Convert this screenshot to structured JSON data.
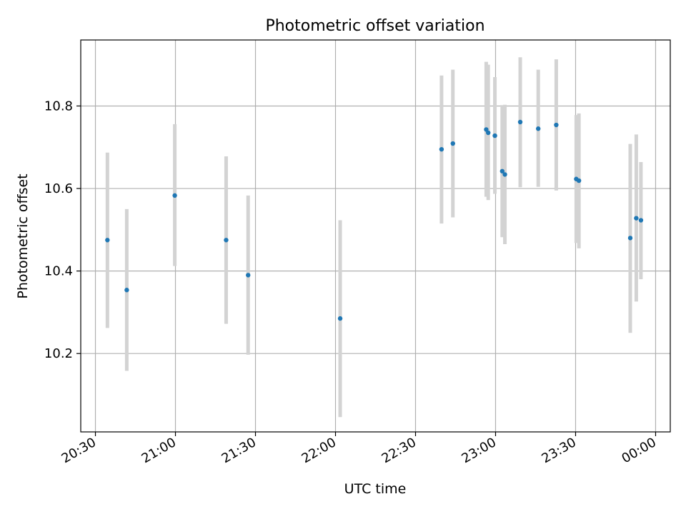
{
  "chart_data": {
    "type": "scatter",
    "title": "Photometric offset variation",
    "xlabel": "UTC time",
    "ylabel": "Photometric offset",
    "x_ticks": [
      "20:30",
      "21:00",
      "21:30",
      "22:00",
      "22:30",
      "23:00",
      "23:30",
      "00:00"
    ],
    "y_ticks": [
      "10.2",
      "10.4",
      "10.6",
      "10.8"
    ],
    "xlim": [
      "20:24:30",
      "00:05:30"
    ],
    "ylim": [
      10.01,
      10.96
    ],
    "grid": true,
    "errorbar_color": "#d3d3d3",
    "point_color": "#1f77b4",
    "series": [
      {
        "points": [
          {
            "x": "20:34:30",
            "y": 10.475,
            "lo": 10.262,
            "hi": 10.687
          },
          {
            "x": "20:41:45",
            "y": 10.354,
            "lo": 10.158,
            "hi": 10.55
          },
          {
            "x": "20:59:45",
            "y": 10.583,
            "lo": 10.412,
            "hi": 10.756
          },
          {
            "x": "21:19:00",
            "y": 10.475,
            "lo": 10.272,
            "hi": 10.678
          },
          {
            "x": "21:27:15",
            "y": 10.39,
            "lo": 10.197,
            "hi": 10.583
          },
          {
            "x": "22:01:45",
            "y": 10.285,
            "lo": 10.046,
            "hi": 10.523
          },
          {
            "x": "22:39:45",
            "y": 10.695,
            "lo": 10.515,
            "hi": 10.874
          },
          {
            "x": "22:44:00",
            "y": 10.709,
            "lo": 10.53,
            "hi": 10.888
          },
          {
            "x": "22:56:30",
            "y": 10.743,
            "lo": 10.58,
            "hi": 10.907
          },
          {
            "x": "22:57:15",
            "y": 10.735,
            "lo": 10.572,
            "hi": 10.9
          },
          {
            "x": "22:59:45",
            "y": 10.728,
            "lo": 10.587,
            "hi": 10.87
          },
          {
            "x": "23:02:30",
            "y": 10.642,
            "lo": 10.482,
            "hi": 10.802
          },
          {
            "x": "23:03:30",
            "y": 10.634,
            "lo": 10.465,
            "hi": 10.803
          },
          {
            "x": "23:09:15",
            "y": 10.761,
            "lo": 10.603,
            "hi": 10.918
          },
          {
            "x": "23:16:00",
            "y": 10.745,
            "lo": 10.604,
            "hi": 10.888
          },
          {
            "x": "23:22:45",
            "y": 10.754,
            "lo": 10.595,
            "hi": 10.913
          },
          {
            "x": "23:30:15",
            "y": 10.623,
            "lo": 10.468,
            "hi": 10.778
          },
          {
            "x": "23:31:15",
            "y": 10.619,
            "lo": 10.455,
            "hi": 10.782
          },
          {
            "x": "23:50:30",
            "y": 10.48,
            "lo": 10.25,
            "hi": 10.708
          },
          {
            "x": "23:52:45",
            "y": 10.528,
            "lo": 10.326,
            "hi": 10.731
          },
          {
            "x": "23:54:30",
            "y": 10.523,
            "lo": 10.38,
            "hi": 10.664
          }
        ]
      }
    ]
  }
}
